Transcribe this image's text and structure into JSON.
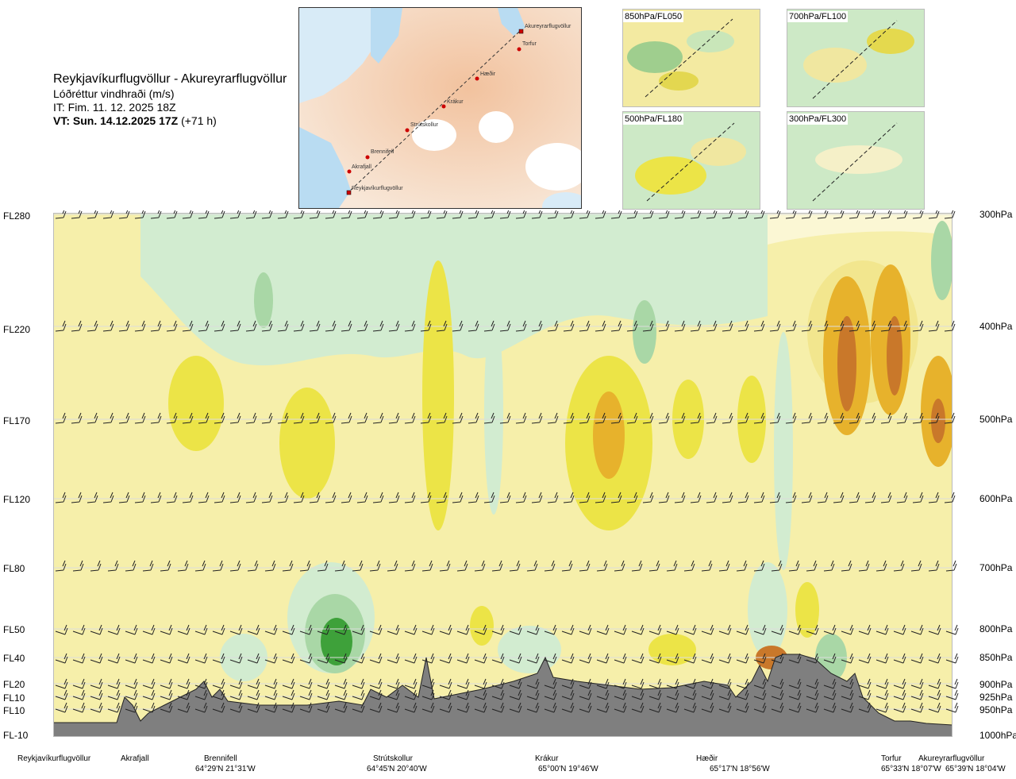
{
  "header": {
    "route": "Reykjavíkurflugvöllur - Akureyrarflugvöllur",
    "parameter": "Lóðréttur vindhraði (m/s)",
    "issue": "IT: Fim. 11. 12. 2025 18Z",
    "valid_bold": "VT: Sun. 14.12.2025 17Z",
    "valid_rest": " (+71 h)"
  },
  "map": {
    "points": [
      {
        "name": "Akureyrarflugvöllur"
      },
      {
        "name": "Torfur"
      },
      {
        "name": "Hæðir"
      },
      {
        "name": "Krákur"
      },
      {
        "name": "Strútskollur"
      },
      {
        "name": "Brennifell"
      },
      {
        "name": "Akrafjall"
      },
      {
        "name": "Reykjavíkurflugvöllur"
      }
    ]
  },
  "thumbnails": [
    {
      "label": "850hPa/FL050"
    },
    {
      "label": "700hPa/FL100"
    },
    {
      "label": "500hPa/FL180"
    },
    {
      "label": "300hPa/FL300"
    }
  ],
  "left_axis": [
    "FL280",
    "FL220",
    "FL170",
    "FL120",
    "FL80",
    "FL50",
    "FL40",
    "FL20",
    "FL10",
    "FL10",
    "FL-10"
  ],
  "right_axis": [
    "300hPa",
    "400hPa",
    "500hPa",
    "600hPa",
    "700hPa",
    "800hPa",
    "850hPa",
    "900hPa",
    "925hPa",
    "950hPa",
    "1000hPa"
  ],
  "bottom": {
    "locations": [
      "Reykjavíkurflugvöllur",
      "Akrafjall",
      "Brennifell",
      "Strútskollur",
      "Krákur",
      "Hæðir",
      "Torfur",
      "Akureyrarflugvöllur"
    ],
    "coords": [
      "64°29'N 21°31'W",
      "64°45'N 20°40'W",
      "65°00'N 19°46'W",
      "65°17'N 18°56'W",
      "65°33'N 18°07'W",
      "65°39'N 18°04'W"
    ]
  },
  "colors": {
    "green_light": "#d2ecd0",
    "green_mid": "#a9d7a6",
    "green_dark": "#3ea13a",
    "yellow_light": "#f6efaa",
    "yellow_mid": "#ece447",
    "orange": "#e7b22c",
    "brown": "#c9782a",
    "terrain": "#7f7f7f"
  },
  "chart_data": {
    "type": "heatmap",
    "title": "Lóðréttur vindhraði (m/s)",
    "y_levels_hPa": [
      300,
      400,
      500,
      600,
      700,
      800,
      850,
      900,
      925,
      950,
      1000
    ],
    "x_waypoints": [
      "Reykjavíkurflugvöllur",
      "Akrafjall",
      "Brennifell",
      "Strútskollur",
      "Krákur",
      "Hæðir",
      "Torfur",
      "Akureyrarflugvöllur"
    ],
    "note_fields": "shaded vertical velocity cross-section with wind barbs and terrain"
  }
}
